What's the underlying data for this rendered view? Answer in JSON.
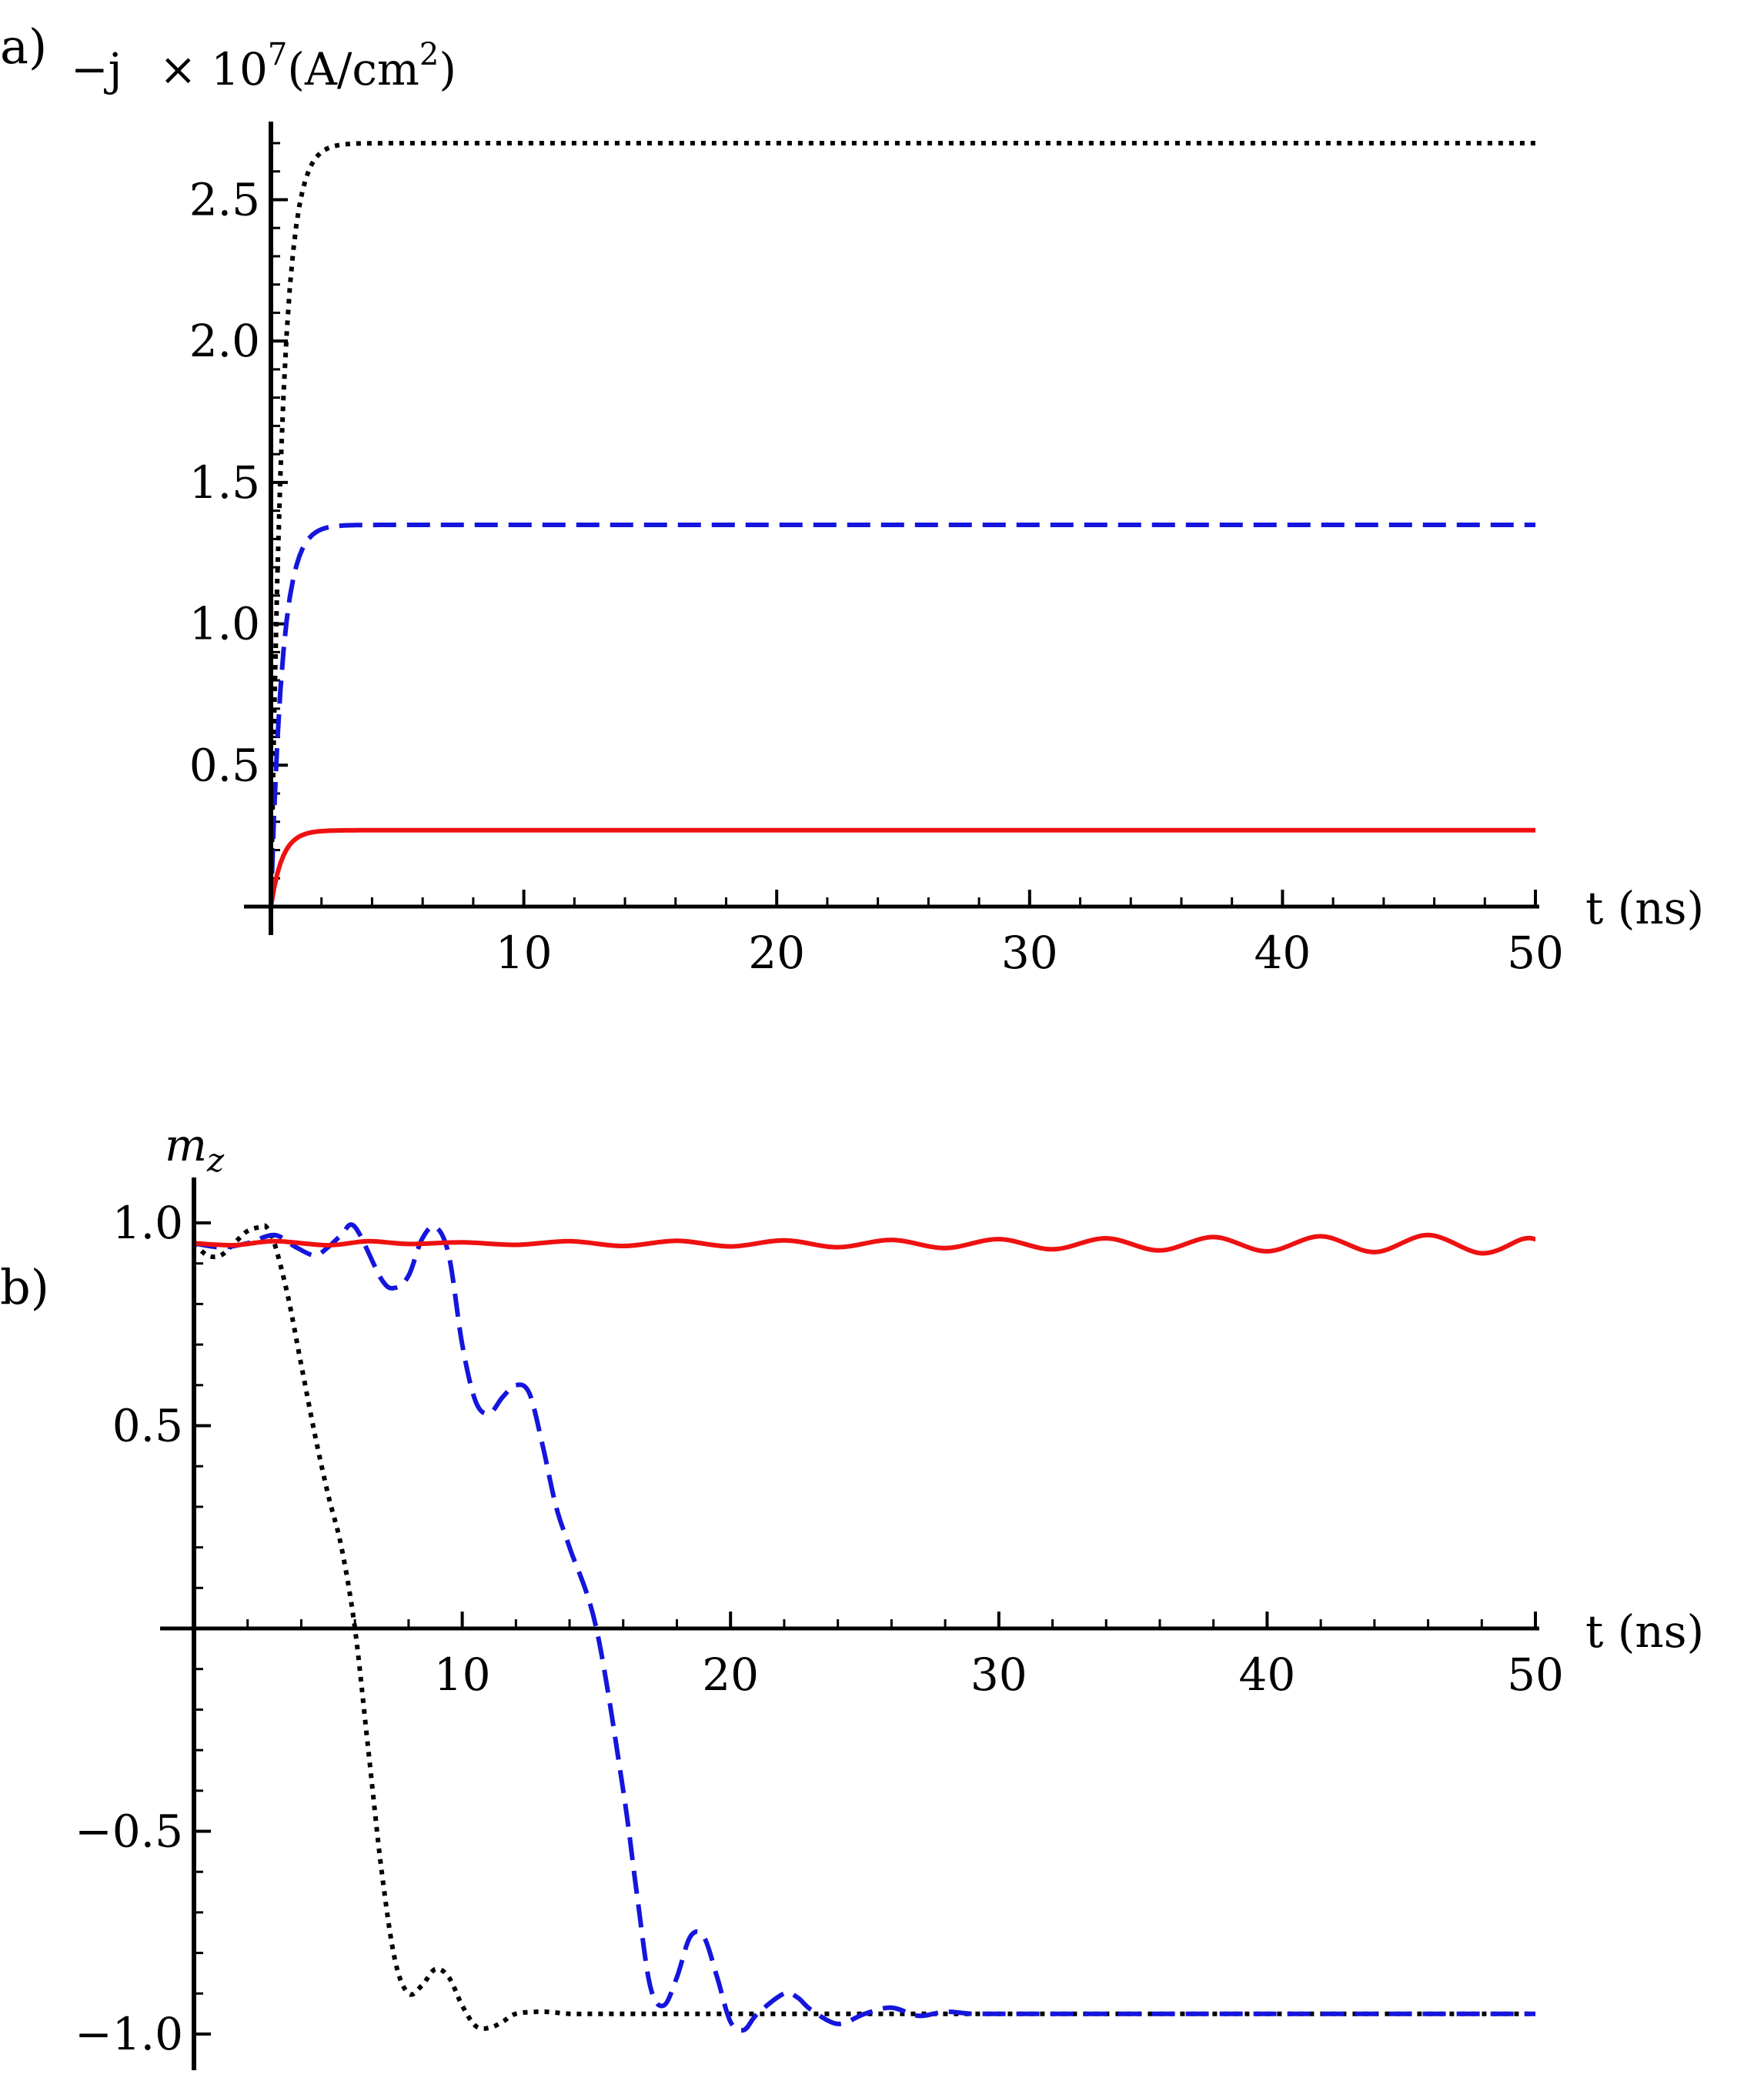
{
  "chart_data": [
    {
      "type": "line",
      "panel_label": "a)",
      "ylabel_prefix": "−j",
      "ylabel_scale": "× 10",
      "ylabel_scale_exp": "7",
      "ylabel_units": "(A/cm",
      "ylabel_units_exp": "2",
      "ylabel_close": ")",
      "xlabel": "t (ns)",
      "xlim": [
        0,
        50
      ],
      "ylim": [
        0,
        2.7
      ],
      "x_ticks": [
        10,
        20,
        30,
        40,
        50
      ],
      "y_ticks": [
        0.5,
        1.0,
        1.5,
        2.0,
        2.5
      ],
      "x_tick_labels": [
        "10",
        "20",
        "30",
        "40",
        "50"
      ],
      "y_tick_labels": [
        "0.5",
        "1.0",
        "1.5",
        "2.0",
        "2.5"
      ],
      "grid": false,
      "series": [
        {
          "color": "#000000",
          "style": "dotted",
          "saturation": 2.7,
          "tau": 0.45
        },
        {
          "color": "#1515dd",
          "style": "dashed",
          "saturation": 1.35,
          "tau": 0.45
        },
        {
          "color": "#ee1111",
          "style": "solid",
          "saturation": 0.27,
          "tau": 0.45
        }
      ]
    },
    {
      "type": "line",
      "panel_label": "b)",
      "ylabel_main": "m",
      "ylabel_sub": "z",
      "xlabel": "t (ns)",
      "xlim": [
        0,
        50
      ],
      "ylim": [
        -1.0,
        1.0
      ],
      "x_ticks": [
        10,
        20,
        30,
        40,
        50
      ],
      "y_ticks": [
        -1.0,
        -0.5,
        0.5,
        1.0
      ],
      "x_tick_labels": [
        "10",
        "20",
        "30",
        "40",
        "50"
      ],
      "y_tick_labels": [
        "−1.0",
        "−0.5",
        "0.5",
        "1.0"
      ],
      "grid": false,
      "series": [
        {
          "color": "#000000",
          "style": "dotted",
          "x": [
            0,
            0.5,
            1,
            1.5,
            2,
            2.5,
            2.7,
            3,
            3.5,
            4,
            4.5,
            5,
            5.5,
            6,
            6.5,
            7,
            7.5,
            8,
            8.5,
            9,
            9.5,
            10,
            10.5,
            11,
            11.5,
            12,
            13,
            14,
            15,
            17,
            20,
            25,
            30,
            35,
            40,
            45,
            50
          ],
          "y": [
            0.95,
            0.92,
            0.92,
            0.95,
            0.98,
            0.99,
            0.99,
            0.95,
            0.82,
            0.65,
            0.48,
            0.33,
            0.2,
            0.0,
            -0.3,
            -0.6,
            -0.82,
            -0.9,
            -0.88,
            -0.84,
            -0.86,
            -0.93,
            -0.98,
            -0.985,
            -0.97,
            -0.95,
            -0.945,
            -0.95,
            -0.95,
            -0.95,
            -0.95,
            -0.95,
            -0.95,
            -0.95,
            -0.95,
            -0.95,
            -0.95
          ]
        },
        {
          "color": "#1515dd",
          "style": "dashed",
          "x": [
            0,
            1,
            2,
            3,
            3.8,
            4.5,
            5,
            5.5,
            6,
            7,
            7.5,
            8,
            8.5,
            9,
            9.5,
            10,
            10.5,
            11,
            11.5,
            12,
            12.5,
            13,
            13.5,
            14,
            15,
            16,
            16.5,
            17,
            17.5,
            18,
            18.5,
            19,
            19.5,
            20,
            20.5,
            21,
            22,
            22.5,
            23,
            24,
            25,
            26,
            27,
            28,
            29,
            30,
            35,
            40,
            45,
            50
          ],
          "y": [
            0.95,
            0.94,
            0.95,
            0.97,
            0.94,
            0.92,
            0.94,
            0.97,
            0.99,
            0.86,
            0.84,
            0.87,
            0.96,
            0.99,
            0.92,
            0.7,
            0.56,
            0.53,
            0.57,
            0.6,
            0.58,
            0.45,
            0.3,
            0.2,
            0.0,
            -0.4,
            -0.65,
            -0.88,
            -0.93,
            -0.86,
            -0.76,
            -0.76,
            -0.86,
            -0.97,
            -0.99,
            -0.95,
            -0.9,
            -0.91,
            -0.94,
            -0.975,
            -0.95,
            -0.935,
            -0.955,
            -0.945,
            -0.95,
            -0.95,
            -0.95,
            -0.95,
            -0.95,
            -0.95
          ]
        },
        {
          "color": "#ee1111",
          "style": "solid",
          "x": [
            0,
            1.5,
            3,
            5,
            6.5,
            8,
            10,
            12,
            14,
            16,
            18,
            20,
            22,
            24,
            26,
            28,
            30,
            32,
            34,
            36,
            38,
            40,
            42,
            44,
            46,
            48,
            49.5,
            50
          ],
          "y": [
            0.95,
            0.945,
            0.955,
            0.945,
            0.955,
            0.948,
            0.952,
            0.946,
            0.955,
            0.943,
            0.956,
            0.942,
            0.957,
            0.94,
            0.958,
            0.938,
            0.96,
            0.935,
            0.962,
            0.932,
            0.965,
            0.93,
            0.967,
            0.928,
            0.97,
            0.925,
            0.96,
            0.96
          ]
        }
      ]
    }
  ]
}
